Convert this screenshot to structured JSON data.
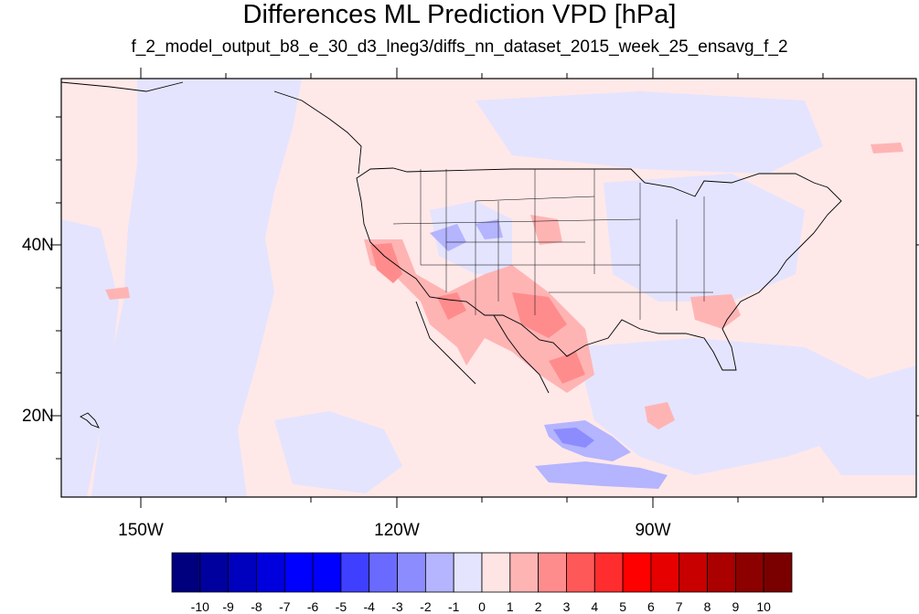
{
  "figure": {
    "title": "Differences ML Prediction VPD [hPa]",
    "subtitle": "f_2_model_output_b8_e_30_d3_lneg3/diffs_nn_dataset_2015_week_25_ensavg_f_2"
  },
  "axes": {
    "lon_labels": [
      "150W",
      "120W",
      "90W"
    ],
    "lat_labels": [
      "40N",
      "20N"
    ]
  },
  "colorbar": {
    "labels": [
      "-10",
      "-9",
      "-8",
      "-7",
      "-6",
      "-5",
      "-4",
      "-3",
      "-2",
      "-1",
      "0",
      "1",
      "2",
      "3",
      "4",
      "5",
      "6",
      "7",
      "8",
      "9",
      "10"
    ],
    "colors": [
      "#00007f",
      "#00009f",
      "#0000bf",
      "#0000df",
      "#0000ff",
      "#0000ff",
      "#3f3fff",
      "#6a6aff",
      "#8c8cff",
      "#b4b4ff",
      "#e4e4ff",
      "#ffe4e4",
      "#ffb4b4",
      "#ff8c8c",
      "#ff5858",
      "#ff2d2d",
      "#ff0000",
      "#e60000",
      "#c80000",
      "#aa0000",
      "#8c0000",
      "#7a0000"
    ]
  },
  "map": {
    "background_color": "#ffe8e8",
    "negative_color": "#e4e4ff"
  }
}
